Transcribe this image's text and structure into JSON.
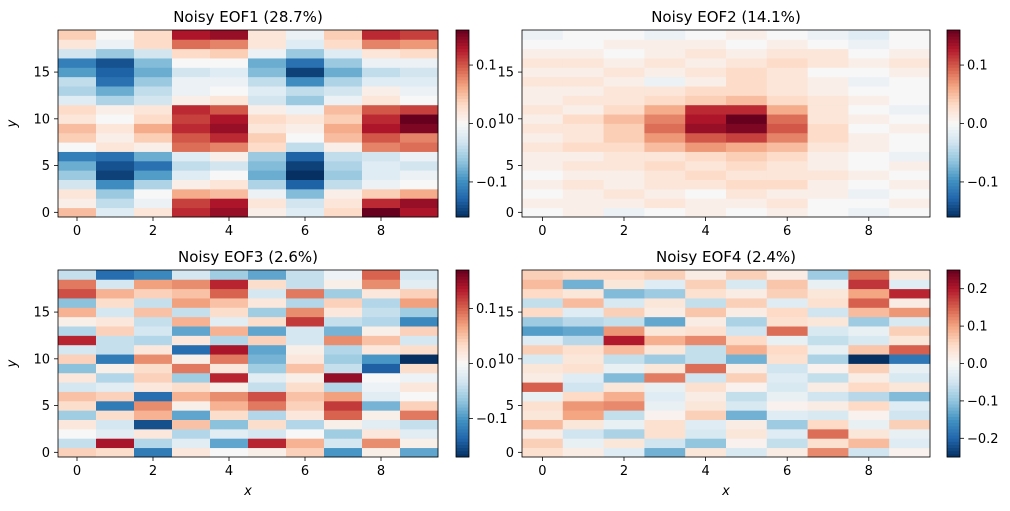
{
  "figure": {},
  "chart_data": [
    {
      "type": "heatmap",
      "title": "Noisy EOF1 (28.7%)",
      "xlabel": "",
      "ylabel": "y",
      "x_ticks": [
        0,
        2,
        4,
        6,
        8
      ],
      "y_ticks": [
        0,
        5,
        10,
        15
      ],
      "colorbar_ticks": [
        -0.1,
        0.0,
        0.1
      ],
      "colorbar_tick_labels": [
        "−0.1",
        "0.0",
        "0.1"
      ],
      "clim": [
        -0.16,
        0.16
      ],
      "colormap": "RdBu_r",
      "grid": false,
      "values": [
        [
          0.05,
          -0.02,
          0.02,
          0.12,
          0.14,
          0.01,
          -0.02,
          0.03,
          0.16,
          0.13
        ],
        [
          0.01,
          -0.04,
          -0.01,
          0.11,
          0.13,
          0.02,
          -0.03,
          0.02,
          0.12,
          0.14
        ],
        [
          0.02,
          -0.06,
          0.0,
          0.06,
          0.05,
          -0.01,
          -0.07,
          0.01,
          0.04,
          0.06
        ],
        [
          -0.03,
          -0.1,
          -0.05,
          0.01,
          0.02,
          -0.05,
          -0.13,
          -0.04,
          -0.01,
          0.0
        ],
        [
          -0.06,
          -0.15,
          -0.09,
          -0.02,
          0.0,
          -0.08,
          -0.16,
          -0.06,
          -0.02,
          -0.01
        ],
        [
          -0.08,
          -0.14,
          -0.12,
          -0.04,
          -0.03,
          -0.07,
          -0.15,
          -0.05,
          -0.02,
          -0.03
        ],
        [
          -0.11,
          -0.12,
          -0.08,
          -0.02,
          0.01,
          -0.06,
          -0.13,
          -0.04,
          -0.03,
          -0.01
        ],
        [
          0.0,
          0.02,
          0.01,
          0.09,
          0.08,
          0.03,
          -0.04,
          0.01,
          0.08,
          0.09
        ],
        [
          0.04,
          0.01,
          0.04,
          0.1,
          0.12,
          0.04,
          0.0,
          0.05,
          0.1,
          0.08
        ],
        [
          0.05,
          0.02,
          0.06,
          0.12,
          0.14,
          0.02,
          0.01,
          0.06,
          0.13,
          0.15
        ],
        [
          0.02,
          0.0,
          0.03,
          0.11,
          0.13,
          0.03,
          0.02,
          0.04,
          0.12,
          0.16
        ],
        [
          0.03,
          0.01,
          0.02,
          0.12,
          0.1,
          0.01,
          -0.01,
          0.05,
          0.1,
          0.11
        ],
        [
          -0.02,
          -0.05,
          -0.03,
          0.01,
          0.02,
          -0.03,
          -0.06,
          -0.01,
          0.02,
          0.0
        ],
        [
          -0.05,
          -0.08,
          -0.04,
          -0.01,
          0.0,
          -0.02,
          -0.04,
          -0.03,
          0.01,
          -0.01
        ],
        [
          -0.04,
          -0.12,
          -0.06,
          -0.01,
          -0.01,
          -0.04,
          -0.1,
          -0.05,
          -0.02,
          -0.02
        ],
        [
          -0.09,
          -0.13,
          -0.08,
          -0.03,
          -0.02,
          -0.07,
          -0.15,
          -0.08,
          -0.04,
          -0.03
        ],
        [
          -0.11,
          -0.14,
          -0.07,
          0.0,
          0.0,
          -0.08,
          -0.12,
          -0.06,
          -0.01,
          -0.01
        ],
        [
          -0.03,
          -0.06,
          -0.03,
          0.03,
          0.04,
          -0.01,
          -0.06,
          -0.02,
          0.02,
          0.03
        ],
        [
          0.02,
          -0.01,
          0.03,
          0.09,
          0.08,
          0.02,
          -0.02,
          0.03,
          0.08,
          0.07
        ],
        [
          0.04,
          0.0,
          0.03,
          0.13,
          0.14,
          0.02,
          -0.01,
          0.04,
          0.12,
          0.11
        ]
      ]
    },
    {
      "type": "heatmap",
      "title": "Noisy EOF2 (14.1%)",
      "xlabel": "",
      "ylabel": "",
      "x_ticks": [
        0,
        2,
        4,
        6,
        8
      ],
      "y_ticks": [
        0,
        5,
        10,
        15
      ],
      "colorbar_ticks": [
        -0.1,
        0.0,
        0.1
      ],
      "colorbar_tick_labels": [
        "−0.1",
        "0.0",
        "0.1"
      ],
      "clim": [
        -0.16,
        0.16
      ],
      "colormap": "RdBu_r",
      "grid": false,
      "values": [
        [
          0.0,
          0.01,
          -0.01,
          0.0,
          0.01,
          0.0,
          0.01,
          0.0,
          -0.01,
          0.0
        ],
        [
          0.01,
          0.01,
          0.01,
          0.02,
          0.01,
          0.01,
          0.02,
          0.0,
          0.0,
          0.01
        ],
        [
          0.0,
          0.01,
          0.02,
          0.01,
          0.0,
          0.02,
          0.01,
          0.01,
          -0.01,
          0.0
        ],
        [
          0.01,
          0.02,
          0.01,
          0.02,
          0.02,
          0.03,
          0.03,
          0.01,
          0.0,
          0.01
        ],
        [
          0.0,
          0.01,
          0.01,
          0.02,
          0.03,
          0.02,
          0.02,
          0.02,
          0.01,
          0.0
        ],
        [
          0.01,
          0.02,
          0.02,
          0.03,
          0.02,
          0.03,
          0.02,
          0.01,
          0.0,
          0.01
        ],
        [
          0.01,
          0.01,
          0.02,
          0.02,
          0.03,
          0.04,
          0.03,
          0.01,
          0.0,
          -0.01
        ],
        [
          0.02,
          0.03,
          0.03,
          0.05,
          0.07,
          0.06,
          0.05,
          0.02,
          0.01,
          0.0
        ],
        [
          0.01,
          0.02,
          0.04,
          0.07,
          0.1,
          0.11,
          0.08,
          0.03,
          0.01,
          0.0
        ],
        [
          0.02,
          0.02,
          0.04,
          0.09,
          0.14,
          0.15,
          0.1,
          0.03,
          0.0,
          0.01
        ],
        [
          0.01,
          0.03,
          0.05,
          0.08,
          0.13,
          0.16,
          0.09,
          0.02,
          0.01,
          0.0
        ],
        [
          0.02,
          0.01,
          0.03,
          0.06,
          0.12,
          0.12,
          0.06,
          0.02,
          0.0,
          -0.01
        ],
        [
          0.01,
          0.02,
          0.02,
          0.03,
          0.04,
          0.05,
          0.03,
          0.02,
          0.01,
          0.0
        ],
        [
          0.01,
          0.01,
          0.02,
          0.02,
          0.03,
          0.03,
          0.02,
          0.01,
          0.0,
          0.0
        ],
        [
          0.02,
          0.02,
          0.01,
          -0.01,
          0.01,
          0.03,
          0.02,
          0.01,
          -0.01,
          0.0
        ],
        [
          0.01,
          0.01,
          0.02,
          0.01,
          0.02,
          0.03,
          0.02,
          0.0,
          0.0,
          0.01
        ],
        [
          0.02,
          0.02,
          0.01,
          0.02,
          0.01,
          0.02,
          0.03,
          0.02,
          0.01,
          0.02
        ],
        [
          0.01,
          0.01,
          0.0,
          0.01,
          0.02,
          0.01,
          0.02,
          0.02,
          0.0,
          0.01
        ],
        [
          0.0,
          0.0,
          0.01,
          0.01,
          0.01,
          0.0,
          0.01,
          0.0,
          -0.01,
          0.0
        ],
        [
          -0.01,
          0.0,
          0.0,
          -0.01,
          0.0,
          0.01,
          0.0,
          -0.01,
          -0.02,
          0.0
        ]
      ]
    },
    {
      "type": "heatmap",
      "title": "Noisy EOF3 (2.6%)",
      "xlabel": "x",
      "ylabel": "y",
      "x_ticks": [
        0,
        2,
        4,
        6,
        8
      ],
      "y_ticks": [
        0,
        5,
        10,
        15
      ],
      "colorbar_ticks": [
        -0.1,
        0.0,
        0.1
      ],
      "colorbar_tick_labels": [
        "−0.1",
        "0.0",
        "0.1"
      ],
      "clim": [
        -0.17,
        0.17
      ],
      "colormap": "RdBu_r",
      "grid": false,
      "values": [
        [
          0.04,
          0.03,
          -0.12,
          0.02,
          0.0,
          0.01,
          0.04,
          -0.1,
          0.01,
          -0.09
        ],
        [
          -0.04,
          0.14,
          -0.05,
          -0.02,
          -0.09,
          0.13,
          0.06,
          -0.03,
          0.08,
          0.01
        ],
        [
          0.0,
          -0.02,
          0.02,
          -0.05,
          -0.02,
          -0.03,
          0.0,
          -0.06,
          0.02,
          -0.02
        ],
        [
          0.02,
          -0.03,
          -0.15,
          0.05,
          -0.07,
          0.03,
          -0.05,
          0.01,
          -0.02,
          -0.04
        ],
        [
          -0.06,
          0.03,
          0.06,
          -0.09,
          0.03,
          -0.05,
          0.02,
          0.1,
          0.01,
          0.09
        ],
        [
          0.03,
          -0.12,
          0.08,
          0.01,
          0.06,
          0.09,
          0.04,
          0.12,
          -0.08,
          0.04
        ],
        [
          0.05,
          0.04,
          -0.13,
          0.06,
          0.08,
          0.11,
          0.05,
          0.07,
          -0.02,
          0.0
        ],
        [
          -0.03,
          -0.02,
          0.02,
          0.03,
          0.01,
          -0.04,
          0.03,
          -0.05,
          -0.01,
          0.02
        ],
        [
          0.02,
          -0.05,
          0.04,
          -0.06,
          0.13,
          -0.02,
          0.01,
          0.15,
          0.0,
          -0.01
        ],
        [
          -0.07,
          0.01,
          0.03,
          0.09,
          0.02,
          -0.06,
          0.05,
          -0.04,
          -0.14,
          0.03
        ],
        [
          0.04,
          -0.12,
          0.08,
          0.01,
          0.09,
          -0.08,
          0.02,
          -0.06,
          -0.1,
          -0.17
        ],
        [
          -0.03,
          -0.04,
          0.02,
          -0.13,
          0.14,
          -0.09,
          0.01,
          -0.05,
          0.02,
          0.03
        ],
        [
          0.13,
          -0.04,
          -0.05,
          0.02,
          -0.05,
          0.04,
          -0.03,
          0.08,
          0.05,
          -0.03
        ],
        [
          -0.05,
          0.04,
          -0.03,
          -0.09,
          0.06,
          -0.09,
          -0.03,
          -0.08,
          0.01,
          0.04
        ],
        [
          0.01,
          0.02,
          -0.04,
          0.06,
          -0.02,
          0.03,
          0.12,
          -0.04,
          -0.05,
          -0.11
        ],
        [
          0.06,
          -0.03,
          0.05,
          -0.04,
          0.03,
          -0.06,
          0.08,
          0.02,
          -0.04,
          -0.06
        ],
        [
          -0.07,
          0.03,
          -0.04,
          0.07,
          0.05,
          0.02,
          -0.05,
          0.04,
          -0.05,
          0.07
        ],
        [
          0.11,
          0.06,
          0.04,
          0.05,
          0.1,
          -0.03,
          0.09,
          -0.06,
          0.02,
          0.04
        ],
        [
          0.09,
          -0.03,
          0.07,
          0.08,
          0.13,
          0.03,
          -0.04,
          0.01,
          0.08,
          -0.02
        ],
        [
          -0.04,
          -0.13,
          -0.11,
          -0.03,
          -0.06,
          -0.09,
          -0.04,
          -0.01,
          0.1,
          -0.03
        ]
      ]
    },
    {
      "type": "heatmap",
      "title": "Noisy EOF4 (2.4%)",
      "xlabel": "x",
      "ylabel": "",
      "x_ticks": [
        0,
        2,
        4,
        6,
        8
      ],
      "y_ticks": [
        0,
        5,
        10,
        15
      ],
      "colorbar_ticks": [
        -0.2,
        -0.1,
        0.0,
        0.1,
        0.2
      ],
      "colorbar_tick_labels": [
        "−0.2",
        "−0.1",
        "0.0",
        "0.1",
        "0.2"
      ],
      "clim": [
        -0.25,
        0.25
      ],
      "colormap": "RdBu_r",
      "grid": false,
      "values": [
        [
          0.04,
          0.02,
          -0.03,
          -0.12,
          0.03,
          -0.04,
          0.02,
          0.12,
          -0.05,
          0.01
        ],
        [
          0.06,
          -0.02,
          0.03,
          -0.05,
          -0.1,
          0.01,
          -0.06,
          0.04,
          0.08,
          -0.03
        ],
        [
          0.02,
          -0.05,
          -0.08,
          0.04,
          -0.04,
          0.03,
          -0.03,
          0.14,
          0.03,
          -0.02
        ],
        [
          0.08,
          0.03,
          -0.02,
          0.04,
          -0.03,
          0.02,
          -0.09,
          0.05,
          -0.02,
          0.06
        ],
        [
          0.03,
          0.1,
          -0.06,
          0.01,
          0.06,
          -0.12,
          -0.03,
          -0.04,
          0.01,
          -0.05
        ],
        [
          0.04,
          0.11,
          0.12,
          -0.02,
          0.03,
          -0.04,
          0.01,
          0.02,
          0.05,
          -0.03
        ],
        [
          -0.02,
          0.05,
          0.09,
          -0.03,
          0.02,
          -0.06,
          -0.02,
          -0.05,
          -0.07,
          -0.11
        ],
        [
          0.15,
          -0.05,
          0.03,
          -0.02,
          0.04,
          0.01,
          -0.04,
          0.02,
          0.05,
          0.03
        ],
        [
          0.02,
          -0.03,
          -0.11,
          0.13,
          -0.05,
          0.06,
          -0.03,
          -0.06,
          0.02,
          -0.04
        ],
        [
          0.03,
          0.04,
          -0.02,
          0.03,
          0.14,
          0.02,
          -0.05,
          0.01,
          0.06,
          -0.02
        ],
        [
          -0.04,
          0.03,
          -0.06,
          -0.09,
          -0.06,
          -0.12,
          0.04,
          -0.08,
          -0.25,
          -0.18
        ],
        [
          0.06,
          0.04,
          0.08,
          0.03,
          -0.06,
          0.09,
          0.05,
          -0.02,
          0.07,
          0.15
        ],
        [
          -0.03,
          -0.07,
          0.2,
          0.09,
          0.12,
          0.05,
          -0.02,
          -0.06,
          -0.04,
          0.03
        ],
        [
          -0.14,
          -0.13,
          0.11,
          0.03,
          0.04,
          -0.05,
          0.14,
          -0.04,
          -0.02,
          0.06
        ],
        [
          -0.09,
          -0.07,
          -0.06,
          -0.13,
          0.02,
          -0.08,
          0.04,
          0.03,
          -0.09,
          -0.04
        ],
        [
          0.05,
          -0.03,
          0.06,
          0.02,
          0.07,
          0.02,
          0.05,
          -0.05,
          0.08,
          0.11
        ],
        [
          -0.06,
          0.08,
          -0.04,
          0.03,
          -0.06,
          0.06,
          -0.03,
          0.04,
          0.15,
          0.02
        ],
        [
          0.05,
          0.03,
          -0.11,
          -0.09,
          0.04,
          0.02,
          0.06,
          0.03,
          0.1,
          0.19
        ],
        [
          0.08,
          -0.12,
          0.03,
          -0.03,
          0.06,
          -0.04,
          0.07,
          -0.02,
          0.18,
          -0.03
        ],
        [
          0.06,
          0.05,
          0.05,
          0.06,
          0.02,
          0.06,
          0.02,
          -0.09,
          0.14,
          0.03
        ]
      ]
    }
  ]
}
